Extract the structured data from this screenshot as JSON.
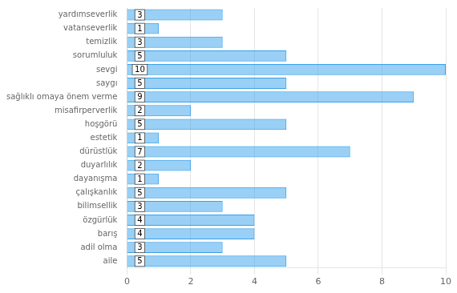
{
  "chart_data": {
    "type": "bar",
    "orientation": "horizontal",
    "categories": [
      "yardımseverlik",
      "vatanseverlik",
      "temizlik",
      "sorumluluk",
      "sevgi",
      "saygı",
      "sağlıklı omaya önem verme",
      "misafirperverlik",
      "hoşgörü",
      "estetik",
      "dürüstlük",
      "duyarlılık",
      "dayanışma",
      "çalışkanlık",
      "bilimsellik",
      "özgürlük",
      "barış",
      "adil olma",
      "aile"
    ],
    "values": [
      3,
      1,
      3,
      5,
      10,
      5,
      9,
      2,
      5,
      1,
      7,
      2,
      1,
      5,
      3,
      4,
      4,
      3,
      5
    ],
    "xlim": [
      0,
      10
    ],
    "xticks": [
      0,
      2,
      4,
      6,
      8,
      10
    ],
    "grid": true,
    "data_labels": true
  }
}
